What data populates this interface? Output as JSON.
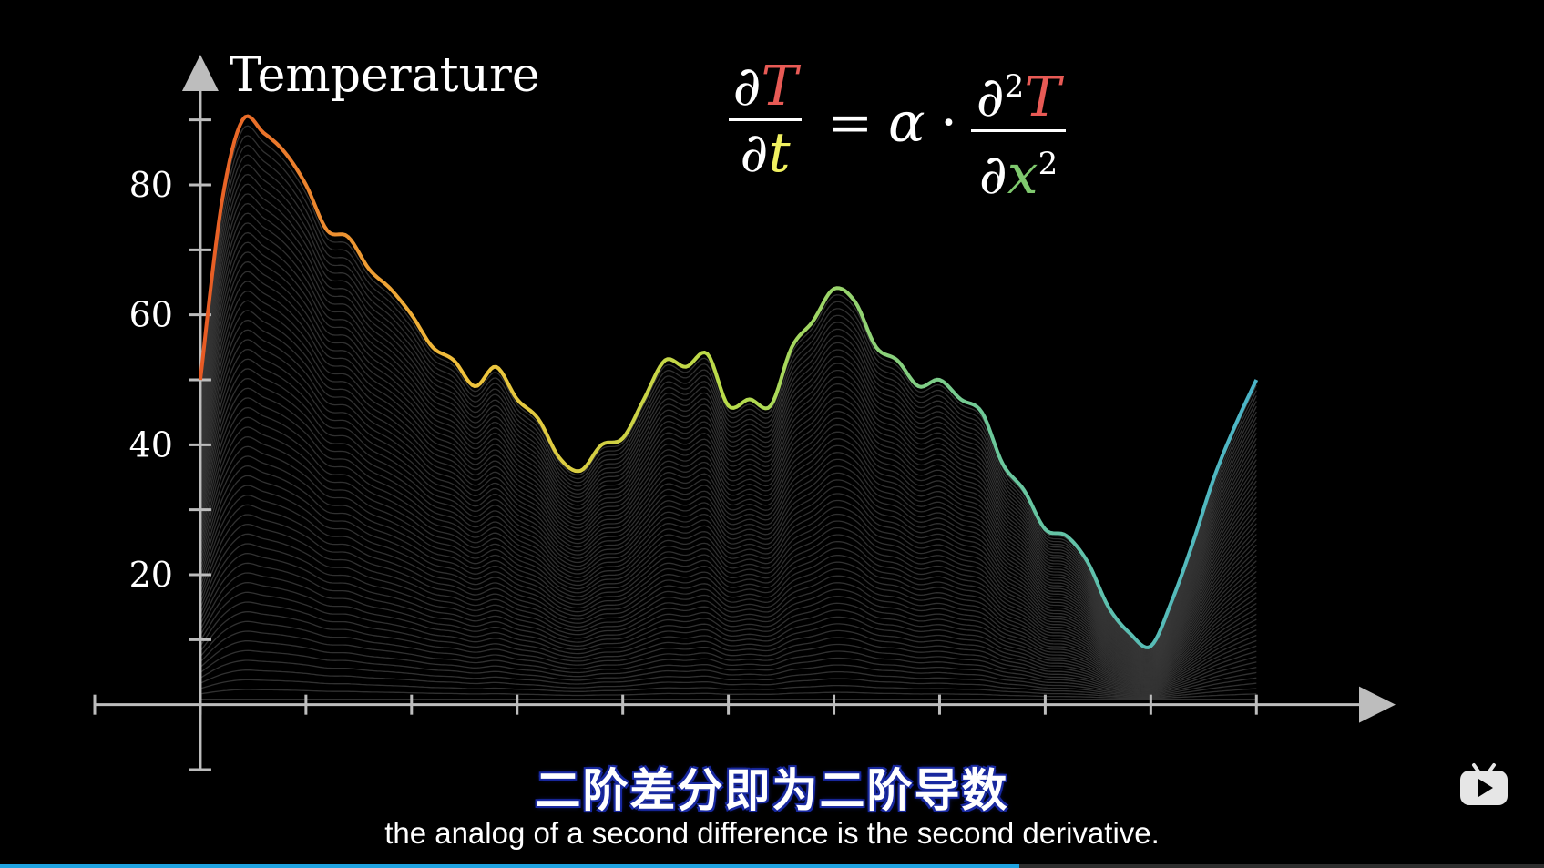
{
  "video": {
    "subtitle_zh": "二阶差分即为二阶导数",
    "subtitle_en": "the analog of a second difference is the second derivative.",
    "progress": 0.66,
    "accent_color": "#1fa3e0",
    "logo_icon": "bilibili-tv-icon"
  },
  "equation": {
    "lhs_num_partial": "∂",
    "lhs_num_var": "T",
    "lhs_den_partial": "∂",
    "lhs_den_var": "t",
    "equals": "=",
    "coef": "α",
    "dot": "·",
    "rhs_num_partial": "∂",
    "rhs_num_exp": "2",
    "rhs_num_var": "T",
    "rhs_den_partial": "∂",
    "rhs_den_var": "x",
    "rhs_den_exp": "2",
    "colors": {
      "T": "#e85a55",
      "t": "#f0f060",
      "x": "#7fc86e"
    }
  },
  "chart_data": {
    "type": "line",
    "ylabel": "Temperature",
    "y_ticks": [
      20,
      40,
      60,
      80
    ],
    "ylim": [
      -10,
      95
    ],
    "xlim": [
      -1,
      11.3
    ],
    "x_tick_count": 11,
    "colormap": [
      "#e85a24",
      "#f0c23c",
      "#b8dc4a",
      "#6cc89a",
      "#4ab4c8"
    ],
    "x": [
      0,
      0.2,
      0.4,
      0.6,
      0.8,
      1.0,
      1.2,
      1.4,
      1.6,
      1.8,
      2.0,
      2.2,
      2.4,
      2.6,
      2.8,
      3.0,
      3.2,
      3.4,
      3.6,
      3.8,
      4.0,
      4.2,
      4.4,
      4.6,
      4.8,
      5.0,
      5.2,
      5.4,
      5.6,
      5.8,
      6.0,
      6.2,
      6.4,
      6.6,
      6.8,
      7.0,
      7.2,
      7.4,
      7.6,
      7.8,
      8.0,
      8.2,
      8.4,
      8.6,
      8.8,
      9.0,
      9.2,
      9.4,
      9.6,
      9.8,
      10.0
    ],
    "y": [
      50,
      77,
      90,
      88,
      85,
      80,
      73,
      72,
      67,
      64,
      60,
      55,
      53,
      49,
      52,
      47,
      44,
      38,
      36,
      40,
      41,
      47,
      53,
      52,
      54,
      46,
      47,
      46,
      55,
      59,
      64,
      62,
      55,
      53,
      49,
      50,
      47,
      45,
      37,
      33,
      27,
      26,
      22,
      15,
      11,
      9,
      16,
      25,
      35,
      43,
      50
    ]
  }
}
